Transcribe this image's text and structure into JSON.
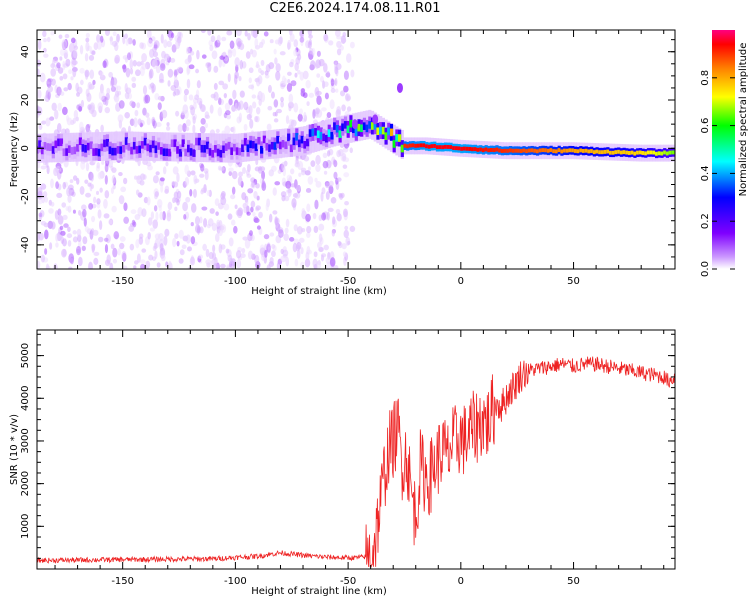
{
  "title": "C2E6.2024.174.08.11.R01",
  "chart_data": [
    {
      "type": "heatmap",
      "xlabel": "Height of straight line (km)",
      "ylabel": "Frequency (Hz)",
      "xlim": [
        -188,
        95
      ],
      "ylim": [
        -50,
        49
      ],
      "xticks": [
        -150,
        -100,
        -50,
        0,
        50
      ],
      "xtick_labels": [
        "-150",
        "-100",
        "-50",
        "0",
        "50"
      ],
      "yticks": [
        -40,
        -20,
        0,
        20,
        40
      ],
      "ytick_labels": [
        "-40",
        "-20",
        "0",
        "20",
        "40"
      ],
      "colorbar": {
        "label": "Normalized spectral amplitude",
        "range": [
          0,
          1
        ],
        "ticks": [
          0.0,
          0.2,
          0.4,
          0.6,
          0.8
        ],
        "tick_labels": [
          "0.0",
          "0.2",
          "0.4",
          "0.6",
          "0.8"
        ],
        "colormap": [
          "#ffffff",
          "#cc99ff",
          "#7f00ff",
          "#0000ff",
          "#00ffff",
          "#00ff00",
          "#ffff00",
          "#ff8000",
          "#ff0000",
          "#ff0080"
        ]
      },
      "features": [
        {
          "name": "noise",
          "x_range": [
            -188,
            -48
          ],
          "y_range": [
            -50,
            49
          ],
          "amplitude": 0.05
        },
        {
          "name": "carrier",
          "points": [
            [
              -188,
              0
            ],
            [
              -150,
              1
            ],
            [
              -100,
              0
            ],
            [
              -70,
              3
            ],
            [
              -55,
              7
            ],
            [
              -40,
              10
            ],
            [
              -30,
              4
            ],
            [
              -25,
              1
            ],
            [
              -15,
              1
            ],
            [
              0,
              0
            ],
            [
              20,
              -1
            ],
            [
              50,
              -1
            ],
            [
              80,
              -2
            ],
            [
              95,
              -2
            ]
          ],
          "amplitude": [
            0.25,
            0.3,
            0.3,
            0.35,
            0.5,
            0.6,
            0.7,
            0.85,
            0.9,
            0.9,
            0.85,
            0.75,
            0.7,
            0.6
          ]
        }
      ],
      "grid": false
    },
    {
      "type": "line",
      "xlabel": "Height of straight line (km)",
      "ylabel": "SNR (10 * v/v)",
      "xlim": [
        -188,
        95
      ],
      "ylim": [
        0,
        5600
      ],
      "xticks": [
        -150,
        -100,
        -50,
        0,
        50
      ],
      "xtick_labels": [
        "-150",
        "-100",
        "-50",
        "0",
        "50"
      ],
      "yticks": [
        1000,
        2000,
        3000,
        4000,
        5000
      ],
      "ytick_labels": [
        "1000",
        "2000",
        "3000",
        "4000",
        "5000"
      ],
      "color": "#ee2222",
      "series": [
        {
          "x": [
            -188,
            -170,
            -150,
            -130,
            -110,
            -90,
            -80,
            -70,
            -60,
            -50,
            -45,
            -40,
            -38,
            -36,
            -34,
            -32,
            -30,
            -28,
            -26,
            -24,
            -22,
            -20,
            -18,
            -16,
            -14,
            -12,
            -10,
            -8,
            -6,
            -4,
            -2,
            0,
            2,
            4,
            6,
            8,
            10,
            12,
            14,
            16,
            18,
            20,
            22,
            24,
            26,
            28,
            30,
            35,
            40,
            45,
            50,
            55,
            60,
            65,
            70,
            75,
            80,
            85,
            90,
            92,
            95
          ],
          "y": [
            200,
            210,
            220,
            230,
            240,
            300,
            380,
            320,
            280,
            260,
            270,
            300,
            700,
            1400,
            2200,
            2800,
            3000,
            3300,
            2500,
            2700,
            1800,
            1200,
            2400,
            2200,
            2100,
            2400,
            2600,
            2800,
            2600,
            2900,
            3000,
            3100,
            3000,
            3200,
            3300,
            3400,
            3500,
            3400,
            3700,
            3900,
            3800,
            4000,
            4200,
            4300,
            4500,
            4600,
            4650,
            4700,
            4750,
            4800,
            4750,
            4800,
            4800,
            4750,
            4700,
            4650,
            4600,
            4550,
            4500,
            4400,
            4500
          ]
        }
      ],
      "grid": false
    }
  ]
}
